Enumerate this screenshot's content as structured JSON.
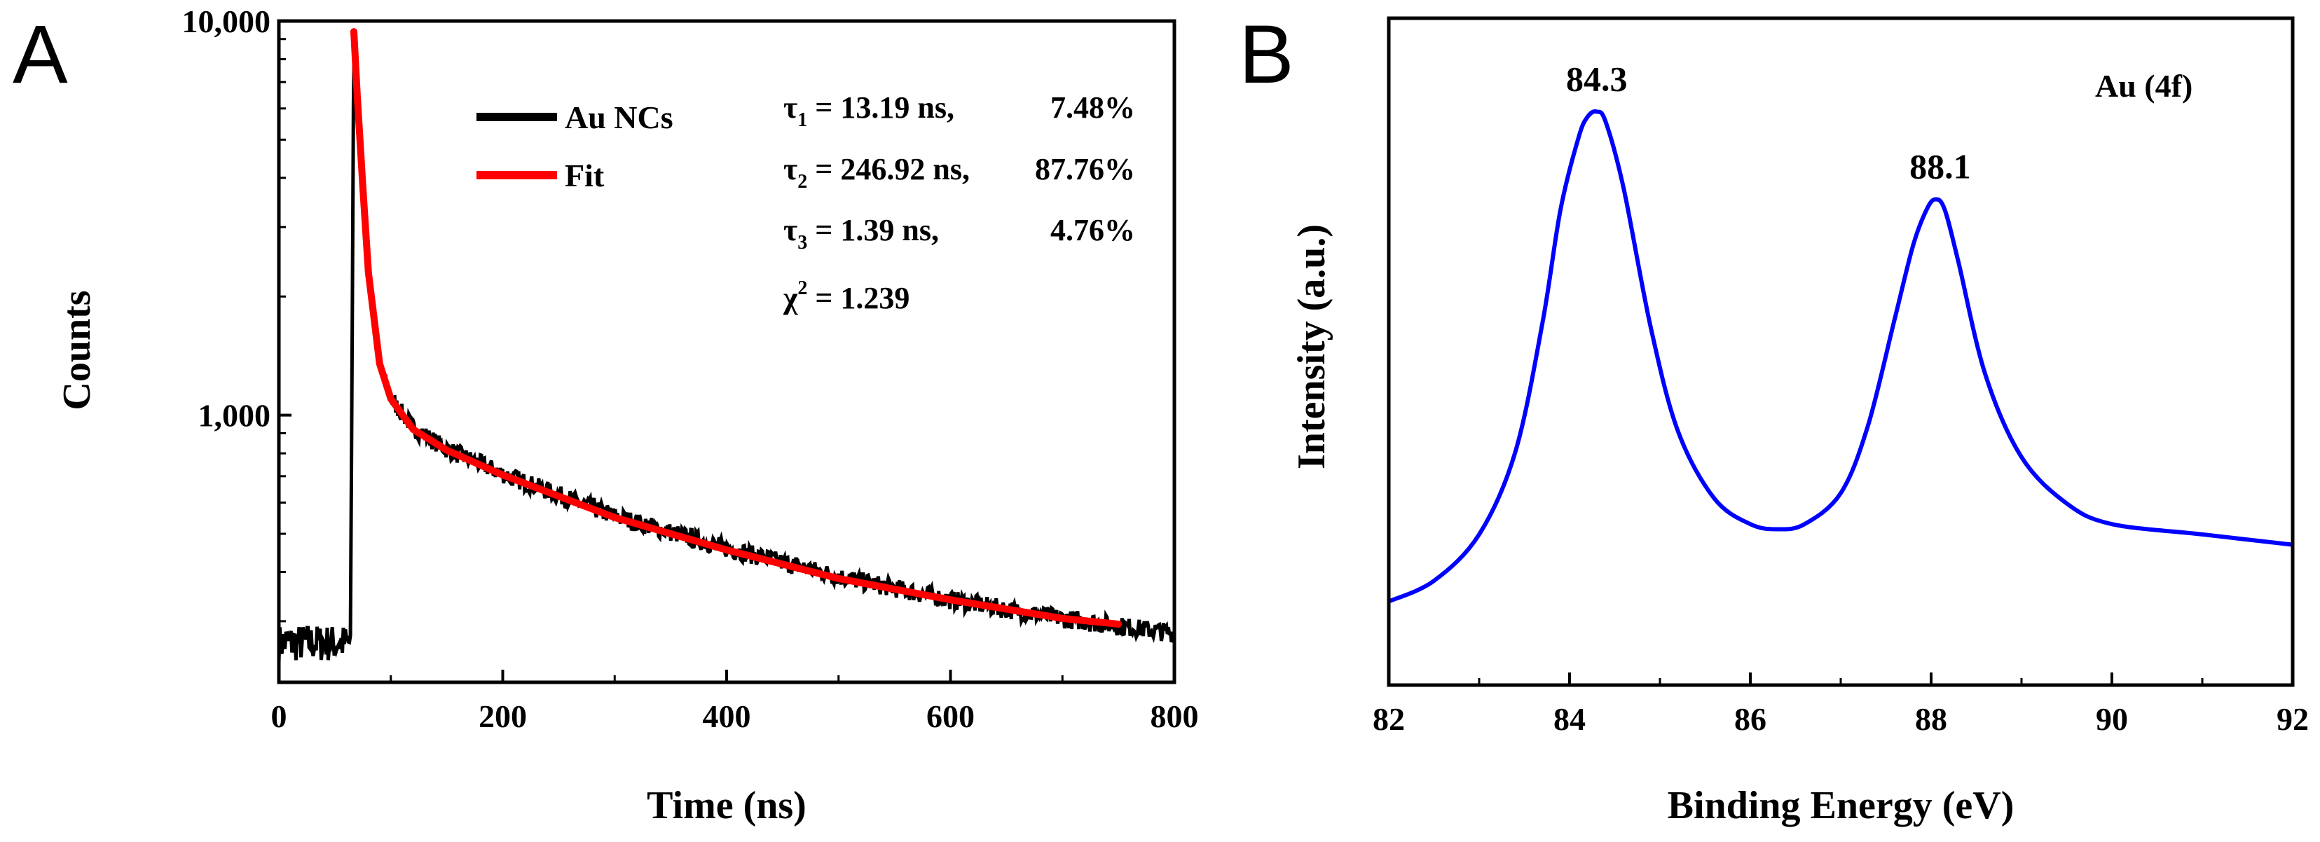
{
  "chart_data": [
    {
      "panel": "A",
      "type": "line",
      "xlabel": "Time (ns)",
      "ylabel": "Counts",
      "xlim": [
        0,
        800
      ],
      "ylim": [
        210,
        10000
      ],
      "yscale": "log",
      "xticks": [
        0,
        200,
        400,
        600,
        800
      ],
      "xtick_labels": [
        "0",
        "200",
        "400",
        "600",
        "800"
      ],
      "yticks": [
        1000,
        10000
      ],
      "ytick_labels": [
        "1,000",
        "10,000"
      ],
      "grid": false,
      "legend_position": "top-center",
      "series": [
        {
          "name": "Au NCs",
          "color": "#000000",
          "x": [
            0,
            20,
            40,
            60,
            64,
            66,
            67,
            70,
            75,
            80,
            90,
            100,
            120,
            150,
            200,
            300,
            400,
            500,
            600,
            700,
            800
          ],
          "y": [
            265,
            265,
            265,
            265,
            265,
            3000,
            10000,
            6500,
            3800,
            2300,
            1350,
            1100,
            930,
            820,
            710,
            555,
            460,
            390,
            340,
            305,
            280
          ]
        },
        {
          "name": "Fit",
          "color": "#ff0000",
          "x": [
            67,
            70,
            75,
            80,
            90,
            100,
            120,
            150,
            200,
            300,
            400,
            500,
            600,
            700,
            750
          ],
          "y": [
            9400,
            6500,
            3800,
            2300,
            1350,
            1100,
            920,
            815,
            705,
            550,
            455,
            385,
            340,
            305,
            295
          ]
        }
      ],
      "annotations": [
        {
          "sym": "τ",
          "sub": "1",
          "text": " = 13.19 ns,",
          "value": "7.48%"
        },
        {
          "sym": "τ",
          "sub": "2",
          "text": " = 246.92 ns,",
          "value": "87.76%"
        },
        {
          "sym": "τ",
          "sub": "3",
          "text": " = 1.39 ns,",
          "value": "4.76%"
        },
        {
          "sym": "χ",
          "sup": "2",
          "text": " = 1.239",
          "value": ""
        }
      ]
    },
    {
      "panel": "B",
      "type": "line",
      "xlabel": "Binding Energy (eV)",
      "ylabel": "Intensity (a.u.)",
      "xlim": [
        82,
        92
      ],
      "ylim": [
        0,
        100
      ],
      "xticks": [
        82,
        84,
        86,
        88,
        90,
        92
      ],
      "xtick_labels": [
        "82",
        "84",
        "86",
        "88",
        "90",
        "92"
      ],
      "grid": false,
      "inset_label": "Au (4f)",
      "series": [
        {
          "name": "",
          "color": "#0000ff",
          "x": [
            82.0,
            82.5,
            83.0,
            83.4,
            83.7,
            83.9,
            84.1,
            84.2,
            84.3,
            84.4,
            84.6,
            84.9,
            85.2,
            85.6,
            86.0,
            86.3,
            86.6,
            87.0,
            87.3,
            87.6,
            87.8,
            87.95,
            88.05,
            88.15,
            88.3,
            88.6,
            89.0,
            89.5,
            90.0,
            91.0,
            92.0
          ],
          "y": [
            4,
            8,
            17,
            33,
            58,
            80,
            94,
            98,
            99,
            97,
            84,
            57,
            37,
            24,
            19,
            18,
            19,
            25,
            38,
            59,
            73,
            80,
            82,
            80,
            70,
            48,
            32,
            23,
            19,
            17,
            15
          ]
        }
      ],
      "peak_labels": [
        {
          "x": 84.3,
          "y": 99,
          "text": "84.3"
        },
        {
          "x": 88.1,
          "y": 82,
          "text": "88.1"
        }
      ]
    }
  ]
}
